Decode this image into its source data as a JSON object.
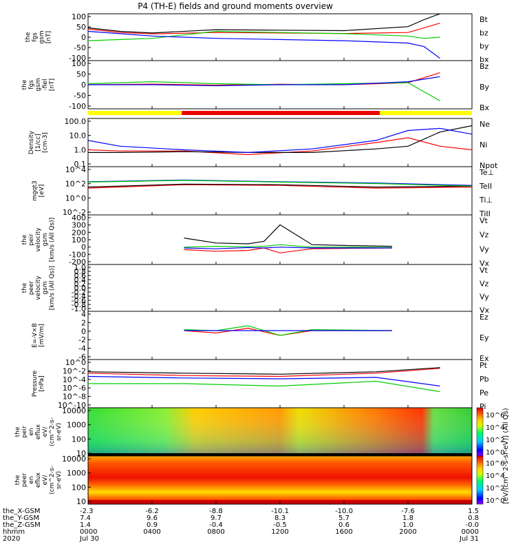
{
  "title": "P4 (TH-E) fields and ground moments overview",
  "colors": {
    "black": "#000000",
    "red": "#ff0000",
    "green": "#00cc00",
    "blue": "#0000ff",
    "yellow": "#ffff00",
    "mode_red": "#ee0000"
  },
  "chart_data": [
    {
      "type": "line",
      "panel": "fgs-gsm",
      "ylabel": [
        "the",
        "fgs",
        "gsm",
        "[nT]"
      ],
      "ylim": [
        -100,
        100
      ],
      "yticks": [
        "100",
        "50",
        "0",
        "-50",
        "-100"
      ],
      "series": [
        {
          "name": "Bt",
          "color": "#000000",
          "x": [
            0,
            2,
            4,
            8,
            12,
            16,
            20,
            21,
            22
          ],
          "y": [
            40,
            25,
            18,
            32,
            30,
            28,
            45,
            75,
            100
          ]
        },
        {
          "name": "bz",
          "color": "#ff0000",
          "x": [
            0,
            2,
            4,
            8,
            12,
            16,
            20,
            21,
            22
          ],
          "y": [
            35,
            20,
            14,
            20,
            18,
            16,
            20,
            40,
            60
          ]
        },
        {
          "name": "by",
          "color": "#00cc00",
          "x": [
            0,
            2,
            4,
            8,
            12,
            16,
            20,
            21,
            22
          ],
          "y": [
            -15,
            -10,
            -5,
            25,
            20,
            15,
            5,
            -5,
            0
          ]
        },
        {
          "name": "bx",
          "color": "#0000ff",
          "x": [
            0,
            2,
            4,
            8,
            12,
            16,
            20,
            21,
            22
          ],
          "y": [
            25,
            15,
            5,
            -5,
            -10,
            -15,
            -25,
            -40,
            -90
          ]
        }
      ]
    },
    {
      "type": "line",
      "panel": "fgs-gse-fiel",
      "ylabel": [
        "the",
        "fgs",
        "gsm",
        "-fiel",
        "[nT]"
      ],
      "ylim": [
        -120,
        120
      ],
      "yticks": [
        "100",
        "50",
        "0",
        "-50",
        "-100"
      ],
      "series": [
        {
          "name": "Bz",
          "color": "#ff0000",
          "x": [
            0,
            4,
            8,
            12,
            16,
            20,
            22
          ],
          "y": [
            0,
            3,
            -2,
            2,
            0,
            10,
            60
          ]
        },
        {
          "name": "By",
          "color": "#00cc00",
          "x": [
            0,
            4,
            8,
            12,
            16,
            20,
            22
          ],
          "y": [
            5,
            15,
            5,
            0,
            5,
            10,
            -80
          ]
        },
        {
          "name": "Bx",
          "color": "#0000ff",
          "x": [
            0,
            4,
            8,
            12,
            16,
            20,
            22
          ],
          "y": [
            0,
            0,
            -5,
            0,
            0,
            15,
            40
          ]
        }
      ]
    },
    {
      "type": "line",
      "panel": "density",
      "ylabel": [
        "Density",
        "[1/cc]",
        "[cm-3]"
      ],
      "yscale": "log",
      "ylim": [
        0.02,
        200
      ],
      "yticks": [
        "100.0",
        "10.0",
        "1.0",
        "0.1"
      ],
      "series": [
        {
          "name": "Ne",
          "color": "#ff0000",
          "x": [
            0,
            2,
            6,
            10,
            14,
            18,
            20,
            22,
            24
          ],
          "y": [
            0.5,
            0.4,
            0.4,
            0.2,
            0.4,
            2,
            5,
            1,
            0.5
          ]
        },
        {
          "name": "Ni",
          "color": "#000000",
          "x": [
            0,
            2,
            6,
            10,
            14,
            18,
            20,
            22,
            24
          ],
          "y": [
            0.3,
            0.3,
            0.35,
            0.3,
            0.3,
            0.6,
            1,
            15,
            50
          ]
        },
        {
          "name": "Npot",
          "color": "#0000ff",
          "x": [
            0,
            2,
            6,
            10,
            14,
            18,
            20,
            22,
            24
          ],
          "y": [
            3,
            1,
            0.5,
            0.3,
            0.6,
            3,
            20,
            30,
            10
          ]
        }
      ]
    },
    {
      "type": "line",
      "panel": "temperature",
      "ylabel": [
        "mgqt3",
        "[eV]"
      ],
      "yscale": "log",
      "yticks": [
        "10^4",
        "10^2",
        "10^0",
        "10^-2"
      ],
      "series": [
        {
          "name": "Te⊥",
          "color": "#ff0000",
          "x": [
            0,
            6,
            12,
            18,
            24
          ],
          "y": [
            500,
            900,
            800,
            500,
            600
          ]
        },
        {
          "name": "TeII",
          "color": "#000000",
          "x": [
            0,
            6,
            12,
            18,
            24
          ],
          "y": [
            600,
            1000,
            900,
            600,
            700
          ]
        },
        {
          "name": "Ti⊥",
          "color": "#0000ff",
          "x": [
            0,
            6,
            12,
            18,
            24
          ],
          "y": [
            1500,
            2000,
            1500,
            1200,
            800
          ]
        },
        {
          "name": "TiII",
          "color": "#00cc00",
          "x": [
            0,
            6,
            12,
            18,
            24
          ],
          "y": [
            1400,
            1900,
            1400,
            1100,
            700
          ]
        }
      ]
    },
    {
      "type": "line",
      "panel": "peir-velocity",
      "ylabel": [
        "the",
        "peir",
        "velocity",
        "gsm",
        "[km/s (All Qs)]"
      ],
      "ylim": [
        -200,
        400
      ],
      "yticks": [
        "400",
        "300",
        "200",
        "100",
        "0",
        "-100",
        "-200"
      ],
      "series": [
        {
          "name": "Vt",
          "color": "#000000",
          "x": [
            6,
            8,
            10,
            11,
            12,
            14,
            16,
            19
          ],
          "y": [
            120,
            60,
            50,
            80,
            280,
            40,
            30,
            20
          ]
        },
        {
          "name": "Vz",
          "color": "#ff0000",
          "x": [
            6,
            8,
            10,
            11,
            12,
            14,
            16,
            19
          ],
          "y": [
            -20,
            -40,
            -30,
            0,
            -60,
            -10,
            -5,
            0
          ]
        },
        {
          "name": "Vy",
          "color": "#00cc00",
          "x": [
            6,
            8,
            10,
            11,
            12,
            14,
            16,
            19
          ],
          "y": [
            10,
            20,
            15,
            20,
            40,
            10,
            10,
            5
          ]
        },
        {
          "name": "Vx",
          "color": "#0000ff",
          "x": [
            6,
            8,
            10,
            11,
            12,
            14,
            16,
            19
          ],
          "y": [
            0,
            -10,
            5,
            0,
            10,
            0,
            0,
            0
          ]
        }
      ]
    },
    {
      "type": "line",
      "panel": "peer-velocity",
      "ylabel": [
        "the",
        "peer",
        "velocity",
        "gsm",
        "[km/s (All Qs)]"
      ],
      "ylim": [
        -1.0,
        1.0
      ],
      "yticks": [
        "1.0",
        "0.8",
        "0.6",
        "0.4",
        "0.2",
        "0.0",
        "-0.2",
        "-0.4",
        "-0.6",
        "-0.8",
        "-1.0"
      ],
      "series": [
        {
          "name": "Vt",
          "color": "#000000",
          "x": [],
          "y": []
        },
        {
          "name": "Vz",
          "color": "#ff0000",
          "x": [],
          "y": []
        },
        {
          "name": "Vy",
          "color": "#00cc00",
          "x": [],
          "y": []
        },
        {
          "name": "Vx",
          "color": "#0000ff",
          "x": [],
          "y": []
        }
      ]
    },
    {
      "type": "line",
      "panel": "efield",
      "ylabel": [
        "E=-V×B",
        "[mV/m]"
      ],
      "ylim": [
        -6,
        4
      ],
      "yticks": [
        "4",
        "2",
        "0",
        "-2",
        "-4",
        "-6"
      ],
      "series": [
        {
          "name": "Ez",
          "color": "#ff0000",
          "x": [
            6,
            8,
            10,
            12,
            14,
            19
          ],
          "y": [
            0,
            -0.5,
            0.5,
            -1,
            0,
            0
          ]
        },
        {
          "name": "Ey",
          "color": "#00cc00",
          "x": [
            6,
            8,
            10,
            12,
            14,
            19
          ],
          "y": [
            0.2,
            0,
            1,
            -1,
            0.2,
            0
          ]
        },
        {
          "name": "Ex",
          "color": "#0000ff",
          "x": [
            6,
            8,
            10,
            12,
            14,
            19
          ],
          "y": [
            0,
            0,
            0,
            0,
            0,
            0
          ]
        }
      ]
    },
    {
      "type": "line",
      "panel": "pressure",
      "ylabel": [
        "Pressure",
        "[nPa]"
      ],
      "yscale": "log",
      "yticks": [
        "10^0",
        "10^-2",
        "10^-4",
        "10^-6",
        "10^-8",
        "10^-10"
      ],
      "series": [
        {
          "name": "Pt",
          "color": "#000000",
          "x": [
            0,
            6,
            12,
            18,
            22
          ],
          "y": [
            0.3,
            0.2,
            0.15,
            0.3,
            1
          ]
        },
        {
          "name": "Pb",
          "color": "#ff0000",
          "x": [
            0,
            6,
            12,
            18,
            22
          ],
          "y": [
            0.2,
            0.1,
            0.08,
            0.2,
            0.8
          ]
        },
        {
          "name": "Pe",
          "color": "#00cc00",
          "x": [
            0,
            6,
            12,
            18,
            22
          ],
          "y": [
            0.01,
            0.01,
            0.005,
            0.02,
            0.001
          ]
        },
        {
          "name": "Pi",
          "color": "#0000ff",
          "x": [
            0,
            6,
            12,
            18,
            22
          ],
          "y": [
            0.08,
            0.05,
            0.04,
            0.06,
            0.005
          ]
        }
      ]
    },
    {
      "type": "heatmap",
      "panel": "peir-en-eflux",
      "ylabel": [
        "the",
        "peir",
        "en",
        "eflux",
        "eV/",
        "(cm^2-s-",
        "sr-eV)"
      ],
      "yscale": "log",
      "yticks": [
        "10000",
        "1000",
        "100",
        "10"
      ]
    },
    {
      "type": "heatmap",
      "panel": "peer-en-eflux",
      "ylabel": [
        "the",
        "peer",
        "en",
        "eflux",
        "eV/",
        "(cm^2-s-",
        "sr-eV)"
      ],
      "yscale": "log",
      "yticks": [
        "10000",
        "1000",
        "100",
        "10"
      ]
    }
  ],
  "colorbar": {
    "ticks": [
      "10^6",
      "10^4",
      "10^2",
      "10^0"
    ],
    "label": "[eV/(cm^2-s-sr-eV)] (All Qs)"
  },
  "x_axis": {
    "row_labels": [
      "the_X-GSM",
      "the_Y-GSM",
      "the_Z-GSM",
      "hhmm",
      "2020"
    ],
    "columns": [
      [
        "-2.3",
        "7.4",
        "1.4",
        "0000",
        "Jul 30"
      ],
      [
        "-6.2",
        "9.6",
        "0.9",
        "0400",
        ""
      ],
      [
        "-8.8",
        "9.7",
        "-0.4",
        "0800",
        ""
      ],
      [
        "-10.1",
        "8.3",
        "-0.5",
        "1200",
        ""
      ],
      [
        "-10.0",
        "5.7",
        "0.6",
        "1600",
        ""
      ],
      [
        "-7.6",
        "1.8",
        "1.0",
        "2000",
        ""
      ],
      [
        "1.5",
        "0.8",
        "-0.0",
        "0000",
        "Jul 31"
      ]
    ]
  }
}
